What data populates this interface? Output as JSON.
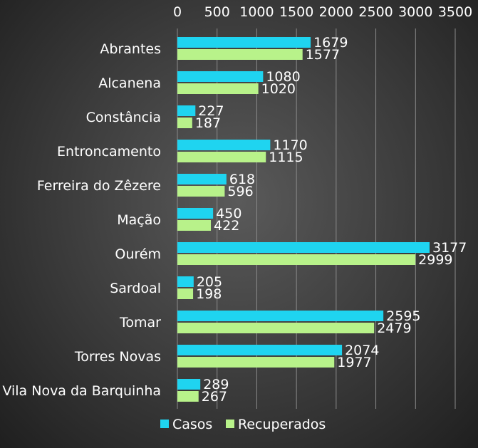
{
  "chart_data": {
    "type": "bar",
    "orientation": "horizontal",
    "categories": [
      "Abrantes",
      "Alcanena",
      "Constância",
      "Entroncamento",
      "Ferreira do Zêzere",
      "Mação",
      "Ourém",
      "Sardoal",
      "Tomar",
      "Torres Novas",
      "Vila Nova da Barquinha"
    ],
    "series": [
      {
        "name": "Casos",
        "color": "#1fd4f0",
        "values": [
          1679,
          1080,
          227,
          1170,
          618,
          450,
          3177,
          205,
          2595,
          2074,
          289
        ]
      },
      {
        "name": "Recuperados",
        "color": "#b8f28a",
        "values": [
          1577,
          1020,
          187,
          1115,
          596,
          422,
          2999,
          198,
          2479,
          1977,
          267
        ]
      }
    ],
    "xlim": [
      0,
      3500
    ],
    "xticks": [
      0,
      500,
      1000,
      1500,
      2000,
      2500,
      3000,
      3500
    ],
    "x_axis_position": "top",
    "grid": true,
    "legend": "bottom",
    "title": "",
    "xlabel": "",
    "ylabel": ""
  }
}
